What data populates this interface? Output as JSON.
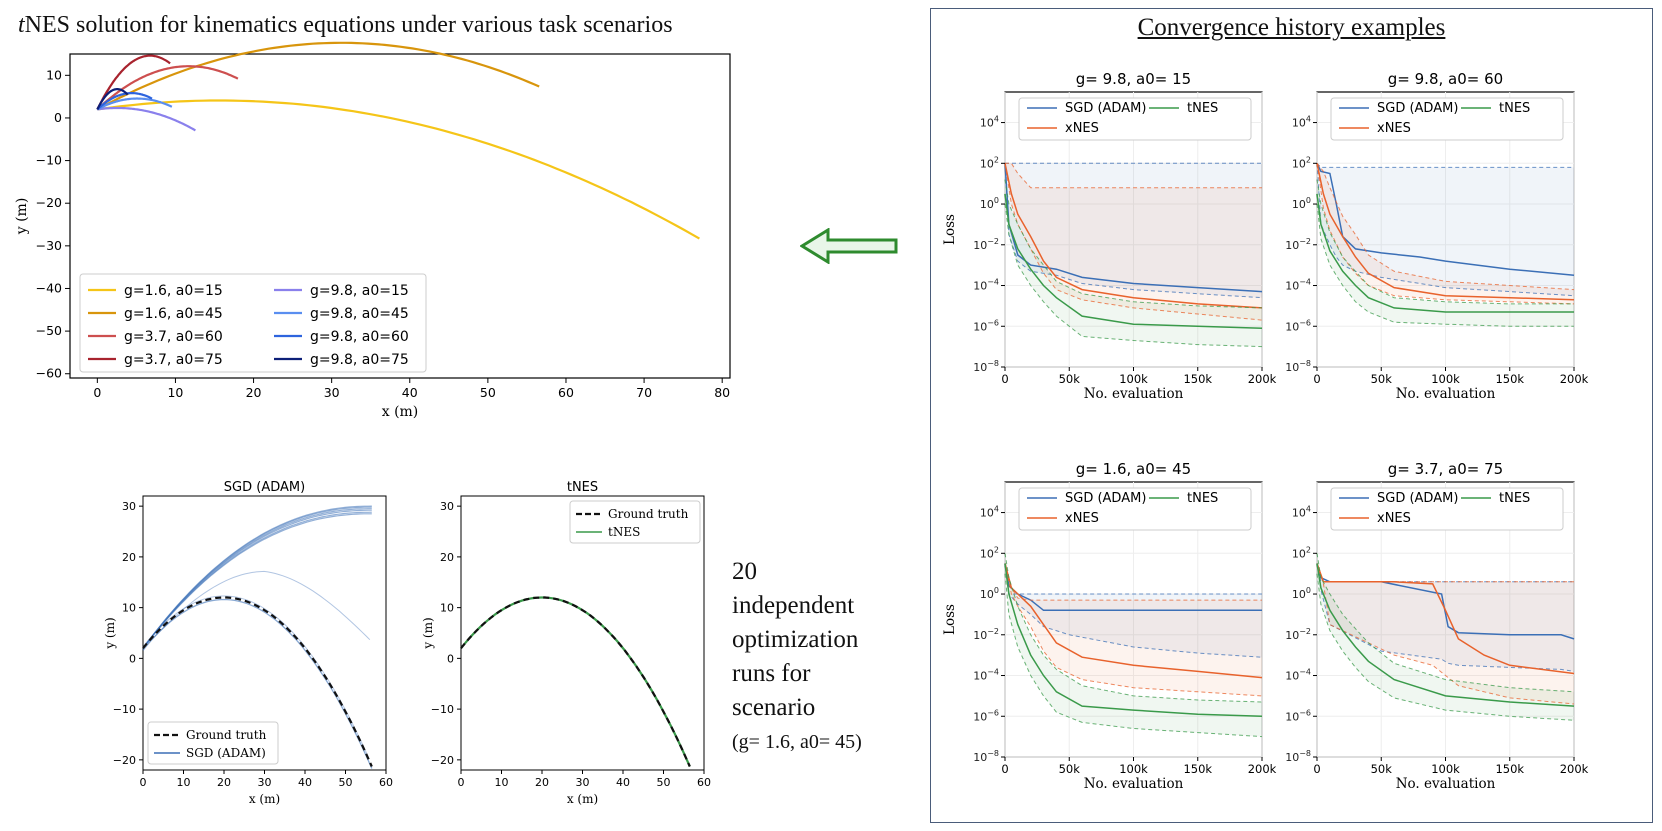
{
  "main_title": {
    "italic": "t",
    "rest": "NES solution for kinematics equations under various task scenarios"
  },
  "convergence_title": "Convergence history examples",
  "side_note": {
    "lines": [
      "20",
      "independent",
      "optimization",
      "runs for",
      "scenario"
    ],
    "params": "(g= 1.6, a0= 45)"
  },
  "colors": {
    "sgd": "#3b6fb6",
    "xnes": "#e8622c",
    "tnes": "#3a9a4a",
    "arrow": "#2e8b2e",
    "box": "#4a5c7a"
  },
  "chart_data": [
    {
      "id": "trajectories",
      "type": "line",
      "xlabel": "x (m)",
      "ylabel": "y (m)",
      "xlim": [
        -3.5,
        81
      ],
      "ylim": [
        -61,
        15
      ],
      "xticks": [
        0,
        10,
        20,
        30,
        40,
        50,
        60,
        70,
        80
      ],
      "yticks": [
        -60,
        -50,
        -40,
        -30,
        -20,
        -10,
        0,
        10
      ],
      "legend_position": "lower-left",
      "series": [
        {
          "name": "g=1.6, a0=15",
          "g": 1.6,
          "a0": 15,
          "color": "#f5c518"
        },
        {
          "name": "g=1.6, a0=45",
          "g": 1.6,
          "a0": 45,
          "color": "#d8950c"
        },
        {
          "name": "g=3.7, a0=60",
          "g": 3.7,
          "a0": 60,
          "color": "#cd4f4f"
        },
        {
          "name": "g=3.7, a0=75",
          "g": 3.7,
          "a0": 75,
          "color": "#a8232e"
        },
        {
          "name": "g=9.8, a0=15",
          "g": 9.8,
          "a0": 15,
          "color": "#8a80ec"
        },
        {
          "name": "g=9.8, a0=45",
          "g": 9.8,
          "a0": 45,
          "color": "#5a8ef0"
        },
        {
          "name": "g=9.8, a0=60",
          "g": 9.8,
          "a0": 60,
          "color": "#2e64de"
        },
        {
          "name": "g=9.8, a0=75",
          "g": 9.8,
          "a0": 75,
          "color": "#0d1f78"
        }
      ]
    },
    {
      "id": "sgd-runs",
      "type": "line",
      "title": "SGD (ADAM)",
      "xlabel": "x (m)",
      "ylabel": "y (m)",
      "xlim": [
        0,
        60
      ],
      "ylim": [
        -22,
        32
      ],
      "xticks": [
        0,
        10,
        20,
        30,
        40,
        50,
        60
      ],
      "yticks": [
        -20,
        -10,
        0,
        10,
        20,
        30
      ],
      "legend": [
        "Ground truth",
        "SGD (ADAM)"
      ],
      "legend_position": "lower-left",
      "ground_truth": {
        "x0": 0,
        "y0": 2,
        "x_end": 56.5,
        "peak": [
          20,
          12
        ]
      }
    },
    {
      "id": "tnes-runs",
      "type": "line",
      "title": "tNES",
      "xlabel": "x (m)",
      "ylabel": "y (m)",
      "xlim": [
        0,
        60
      ],
      "ylim": [
        -22,
        32
      ],
      "xticks": [
        0,
        10,
        20,
        30,
        40,
        50,
        60
      ],
      "yticks": [
        -20,
        -10,
        0,
        10,
        20,
        30
      ],
      "legend": [
        "Ground truth",
        "tNES"
      ],
      "legend_position": "upper-right",
      "ground_truth": {
        "x0": 0,
        "y0": 2,
        "x_end": 56.5,
        "peak": [
          20,
          12
        ]
      }
    },
    {
      "id": "conv-1",
      "type": "line",
      "title": "g= 9.8,  a0= 15",
      "xlabel": "No. evaluation",
      "ylabel": "Loss",
      "xticklabels": [
        "0",
        "50k",
        "100k",
        "150k",
        "200k"
      ],
      "yticklabels": [
        "10^4",
        "10^2",
        "10^0",
        "10^-2",
        "10^-4",
        "10^-6",
        "10^-8"
      ],
      "xlim": [
        0,
        200000
      ],
      "ylog_range": [
        -8,
        5.5
      ],
      "legend": [
        "SGD (ADAM)",
        "tNES",
        "xNES"
      ],
      "legend_position": "top",
      "series": [
        {
          "name": "SGD (ADAM)",
          "x": [
            0,
            3,
            10,
            20,
            40,
            60,
            100,
            150,
            200
          ],
          "median": [
            2,
            -1,
            -2.5,
            -3,
            -3.2,
            -3.6,
            -3.9,
            -4.1,
            -4.3
          ],
          "upper": [
            2,
            2,
            2,
            2,
            2,
            2,
            2,
            2,
            2
          ],
          "lower": [
            2,
            -1.5,
            -2.8,
            -3.3,
            -3.5,
            -3.9,
            -4.2,
            -4.4,
            -4.6
          ]
        },
        {
          "name": "xNES",
          "x": [
            0,
            5,
            10,
            20,
            30,
            40,
            60,
            100,
            150,
            200
          ],
          "median": [
            2,
            0.5,
            -0.5,
            -1.6,
            -2.8,
            -3.6,
            -4.2,
            -4.6,
            -4.9,
            -5.1
          ],
          "upper": [
            2,
            2,
            1.5,
            0.8,
            0.8,
            0.8,
            0.8,
            0.8,
            0.8,
            0.8
          ],
          "lower": [
            2,
            0,
            -1,
            -2.2,
            -3.4,
            -4.2,
            -4.7,
            -5.1,
            -5.4,
            -5.7
          ]
        },
        {
          "name": "tNES",
          "x": [
            0,
            3,
            10,
            20,
            30,
            40,
            60,
            100,
            150,
            200
          ],
          "median": [
            0.5,
            -1,
            -2.2,
            -3.2,
            -4,
            -4.6,
            -5.5,
            -5.9,
            -6.0,
            -6.1
          ],
          "upper": [
            1.2,
            0,
            -1,
            -2.2,
            -3,
            -3.8,
            -4.4,
            -4.8,
            -5.0,
            -5.1
          ],
          "lower": [
            0,
            -1.5,
            -3,
            -4,
            -4.8,
            -5.5,
            -6.5,
            -6.7,
            -6.9,
            -7.0
          ]
        }
      ]
    },
    {
      "id": "conv-2",
      "type": "line",
      "title": "g= 9.8,  a0= 60",
      "xlabel": "No. evaluation",
      "ylabel": "",
      "xticklabels": [
        "0",
        "50k",
        "100k",
        "150k",
        "200k"
      ],
      "yticklabels": [
        "10^4",
        "10^2",
        "10^0",
        "10^-2",
        "10^-4",
        "10^-6",
        "10^-8"
      ],
      "xlim": [
        0,
        200000
      ],
      "ylog_range": [
        -8,
        5.5
      ],
      "legend": [
        "SGD (ADAM)",
        "tNES",
        "xNES"
      ],
      "legend_position": "top",
      "series": [
        {
          "name": "SGD (ADAM)",
          "x": [
            0,
            3,
            10,
            15,
            20,
            30,
            50,
            80,
            100,
            150,
            200
          ],
          "median": [
            2,
            1.6,
            1.5,
            0,
            -1.6,
            -2.2,
            -2.4,
            -2.6,
            -2.8,
            -3.2,
            -3.5
          ],
          "upper": [
            2,
            1.8,
            1.8,
            1.8,
            1.8,
            1.8,
            1.8,
            1.8,
            1.8,
            1.8,
            1.8
          ],
          "lower": [
            2,
            -1,
            -2,
            -2.6,
            -3,
            -3.3,
            -3.6,
            -3.9,
            -4.1,
            -4.3,
            -4.5
          ]
        },
        {
          "name": "xNES",
          "x": [
            0,
            5,
            10,
            20,
            30,
            40,
            60,
            100,
            150,
            200
          ],
          "median": [
            2,
            0.5,
            -0.5,
            -1.6,
            -2.6,
            -3.4,
            -4.1,
            -4.5,
            -4.6,
            -4.7
          ],
          "upper": [
            2,
            1.6,
            0.8,
            -0.6,
            -1.5,
            -2.5,
            -3.3,
            -3.8,
            -4.0,
            -4.2
          ],
          "lower": [
            2,
            -0.2,
            -1.3,
            -2.6,
            -3.4,
            -4.0,
            -4.5,
            -4.7,
            -4.8,
            -4.9
          ]
        },
        {
          "name": "tNES",
          "x": [
            0,
            3,
            10,
            20,
            30,
            40,
            60,
            100,
            150,
            200
          ],
          "median": [
            0.5,
            -1,
            -2.3,
            -3.3,
            -4.0,
            -4.6,
            -5.1,
            -5.3,
            -5.3,
            -5.3
          ],
          "upper": [
            1.2,
            0,
            -1.4,
            -2.6,
            -3.3,
            -4.0,
            -4.6,
            -4.8,
            -4.9,
            -4.9
          ],
          "lower": [
            0,
            -1.7,
            -3,
            -4,
            -4.8,
            -5.3,
            -5.8,
            -5.9,
            -6.0,
            -6.0
          ]
        }
      ]
    },
    {
      "id": "conv-3",
      "type": "line",
      "title": "g= 1.6,  a0= 45",
      "xlabel": "No. evaluation",
      "ylabel": "Loss",
      "xticklabels": [
        "0",
        "50k",
        "100k",
        "150k",
        "200k"
      ],
      "yticklabels": [
        "10^4",
        "10^2",
        "10^0",
        "10^-2",
        "10^-4",
        "10^-6",
        "10^-8"
      ],
      "xlim": [
        0,
        200000
      ],
      "ylog_range": [
        -8,
        5.5
      ],
      "legend": [
        "SGD (ADAM)",
        "tNES",
        "xNES"
      ],
      "legend_position": "top",
      "series": [
        {
          "name": "SGD (ADAM)",
          "x": [
            0,
            3,
            10,
            20,
            30,
            50,
            100,
            150,
            200
          ],
          "median": [
            1.5,
            0.4,
            0,
            -0.3,
            -0.8,
            -0.8,
            -0.8,
            -0.8,
            -0.8
          ],
          "upper": [
            1.5,
            0,
            0,
            0,
            0,
            0,
            0,
            0,
            0
          ],
          "lower": [
            1.5,
            0,
            -0.5,
            -1.0,
            -1.6,
            -2.0,
            -2.6,
            -2.9,
            -3.1
          ]
        },
        {
          "name": "xNES",
          "x": [
            0,
            5,
            10,
            20,
            30,
            40,
            60,
            100,
            150,
            200
          ],
          "median": [
            1.5,
            0.3,
            0,
            -0.6,
            -1.5,
            -2.4,
            -3.1,
            -3.5,
            -3.8,
            -4.1
          ],
          "upper": [
            1.5,
            0.3,
            -0.2,
            -0.3,
            -0.3,
            -0.3,
            -0.3,
            -0.3,
            -0.3,
            -0.3
          ],
          "lower": [
            1.5,
            0,
            -0.6,
            -1.6,
            -2.8,
            -3.6,
            -4.2,
            -4.6,
            -4.8,
            -5.0
          ]
        },
        {
          "name": "tNES",
          "x": [
            0,
            3,
            10,
            20,
            30,
            40,
            60,
            100,
            150,
            200
          ],
          "median": [
            1.5,
            0,
            -1.5,
            -3,
            -4,
            -4.8,
            -5.5,
            -5.7,
            -5.9,
            -6.0
          ],
          "upper": [
            2,
            0.8,
            -0.6,
            -2,
            -3,
            -3.7,
            -4.5,
            -5.0,
            -5.2,
            -5.3
          ],
          "lower": [
            1,
            -1,
            -2.6,
            -4,
            -5,
            -5.8,
            -6.3,
            -6.6,
            -6.8,
            -7.0
          ]
        }
      ]
    },
    {
      "id": "conv-4",
      "type": "line",
      "title": "g= 3.7,  a0= 75",
      "xlabel": "No. evaluation",
      "ylabel": "",
      "xticklabels": [
        "0",
        "50k",
        "100k",
        "150k",
        "200k"
      ],
      "yticklabels": [
        "10^4",
        "10^2",
        "10^0",
        "10^-2",
        "10^-4",
        "10^-6",
        "10^-8"
      ],
      "xlim": [
        0,
        200000
      ],
      "ylog_range": [
        -8,
        5.5
      ],
      "legend": [
        "SGD (ADAM)",
        "tNES",
        "xNES"
      ],
      "legend_position": "top",
      "series": [
        {
          "name": "SGD (ADAM)",
          "x": [
            0,
            3,
            10,
            50,
            97,
            102,
            110,
            150,
            190,
            200
          ],
          "median": [
            1.5,
            0.8,
            0.6,
            0.6,
            0,
            -1.6,
            -1.9,
            -2,
            -2,
            -2.2
          ],
          "upper": [
            1.5,
            0.6,
            0.6,
            0.6,
            0.6,
            0.6,
            0.6,
            0.6,
            0.6,
            0.6
          ],
          "lower": [
            1.5,
            0.2,
            -1.5,
            -2.8,
            -3.2,
            -3.4,
            -3.5,
            -3.6,
            -3.7,
            -3.8
          ]
        },
        {
          "name": "xNES",
          "x": [
            0,
            5,
            10,
            60,
            90,
            100,
            110,
            130,
            150,
            200
          ],
          "median": [
            1.5,
            0.6,
            0.6,
            0.6,
            0.5,
            -0.8,
            -2.2,
            -3,
            -3.5,
            -3.9
          ],
          "upper": [
            1.5,
            0.6,
            0.6,
            0.6,
            0.6,
            0.6,
            0.6,
            0.6,
            0.6,
            0.6
          ],
          "lower": [
            1.5,
            0.5,
            -1.5,
            -3,
            -3.5,
            -4,
            -4.5,
            -4.8,
            -5.1,
            -5.4
          ]
        },
        {
          "name": "tNES",
          "x": [
            0,
            3,
            10,
            20,
            30,
            40,
            60,
            100,
            150,
            200
          ],
          "median": [
            1.5,
            0.3,
            -0.8,
            -1.8,
            -2.6,
            -3.3,
            -4.2,
            -5.0,
            -5.3,
            -5.5
          ],
          "upper": [
            2,
            0.8,
            0,
            -1,
            -1.7,
            -2.4,
            -3.4,
            -4.2,
            -4.6,
            -4.8
          ],
          "lower": [
            1,
            -0.5,
            -1.8,
            -2.8,
            -3.6,
            -4.3,
            -5.1,
            -5.7,
            -6.0,
            -6.2
          ]
        }
      ]
    }
  ]
}
